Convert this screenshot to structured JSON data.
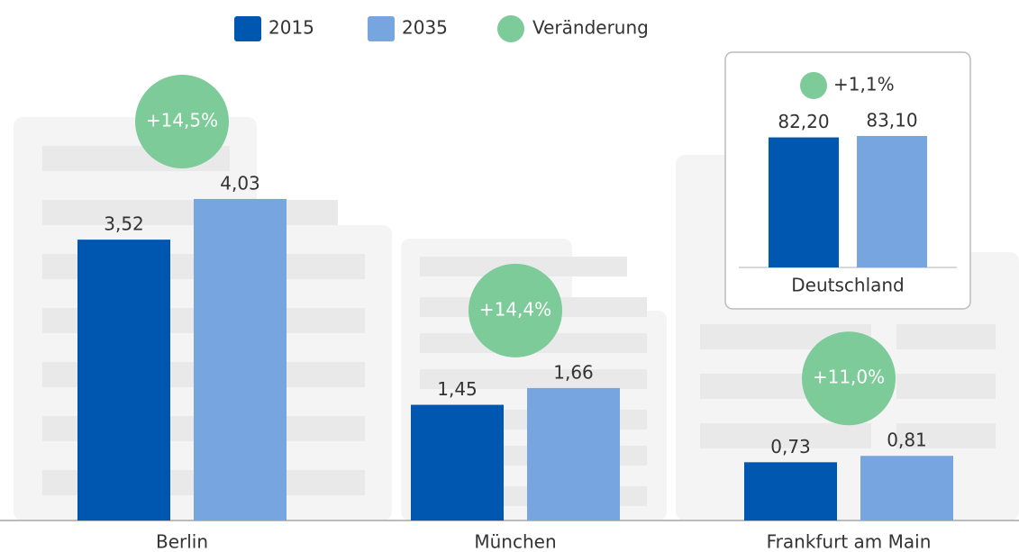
{
  "chart_data": [
    {
      "type": "bar",
      "categories": [
        "Berlin",
        "München",
        "Frankfurt am Main"
      ],
      "series": [
        {
          "name": "2015",
          "color": "#0057b0",
          "values": [
            3.52,
            1.45,
            0.73
          ],
          "value_labels": [
            "3,52",
            "1,45",
            "0,73"
          ]
        },
        {
          "name": "2035",
          "color": "#76a5e0",
          "values": [
            4.03,
            1.66,
            0.81
          ],
          "value_labels": [
            "4,03",
            "1,66",
            "0,81"
          ]
        },
        {
          "name": "Veränderung",
          "color": "#7ccb98",
          "values": [
            14.5,
            14.4,
            11.0
          ],
          "value_labels": [
            "+14,5%",
            "+14,4%",
            "+11,0%"
          ]
        }
      ]
    },
    {
      "type": "bar",
      "categories": [
        "Deutschland"
      ],
      "series": [
        {
          "color": "#0057b0",
          "values": [
            82.2
          ],
          "value_labels": [
            "82,20"
          ]
        },
        {
          "color": "#76a5e0",
          "values": [
            83.1
          ],
          "value_labels": [
            "83,10"
          ]
        },
        {
          "color": "#7ccb98",
          "values": [
            1.1
          ],
          "value_labels": [
            "+1,1%"
          ]
        }
      ]
    }
  ]
}
